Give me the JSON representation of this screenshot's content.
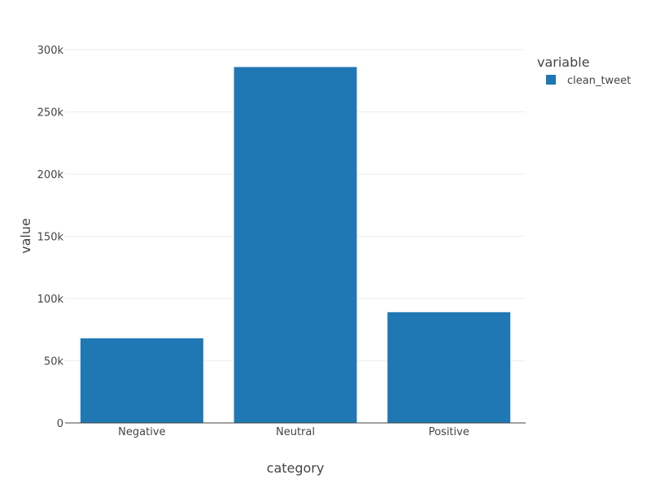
{
  "chart_data": {
    "type": "bar",
    "title": "",
    "xlabel": "category",
    "ylabel": "value",
    "categories": [
      "Negative",
      "Neutral",
      "Positive"
    ],
    "series": [
      {
        "name": "clean_tweet",
        "values": [
          68000,
          286000,
          89000
        ]
      }
    ],
    "ylim": [
      0,
      300000
    ],
    "yticks": [
      0,
      50000,
      100000,
      150000,
      200000,
      250000,
      300000
    ],
    "ytick_labels": [
      "0",
      "50k",
      "100k",
      "150k",
      "200k",
      "250k",
      "300k"
    ],
    "grid": true,
    "legend": {
      "title": "variable",
      "position": "top-right",
      "entries": [
        "clean_tweet"
      ]
    },
    "colors": {
      "bar": "#1f77b4",
      "grid": "#eeeeee",
      "axis_line": "#444444",
      "text": "#444444"
    }
  }
}
